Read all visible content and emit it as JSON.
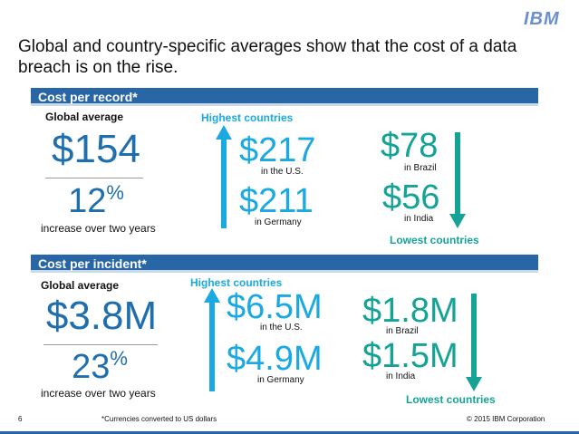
{
  "logo": "IBM",
  "title": "Global and country-specific averages show that the cost of a data breach is on the rise.",
  "sections": [
    {
      "heading": "Cost per record*",
      "global_label": "Global average",
      "global_value": "$154",
      "increase_value": "12",
      "increase_unit": "%",
      "increase_text": "increase over two years",
      "highest_label": "Highest countries",
      "highest": [
        {
          "value": "$217",
          "country": "in the U.S."
        },
        {
          "value": "$211",
          "country": "in Germany"
        }
      ],
      "lowest_label": "Lowest countries",
      "lowest": [
        {
          "value": "$78",
          "country": "in Brazil"
        },
        {
          "value": "$56",
          "country": "in India"
        }
      ]
    },
    {
      "heading": "Cost per incident*",
      "global_label": "Global average",
      "global_value": "$3.8M",
      "increase_value": "23",
      "increase_unit": "%",
      "increase_text": "increase over two years",
      "highest_label": "Highest countries",
      "highest": [
        {
          "value": "$6.5M",
          "country": "in the U.S."
        },
        {
          "value": "$4.9M",
          "country": "in Germany"
        }
      ],
      "lowest_label": "Lowest countries",
      "lowest": [
        {
          "value": "$1.8M",
          "country": "in Brazil"
        },
        {
          "value": "$1.5M",
          "country": "in India"
        }
      ]
    }
  ],
  "footer": {
    "page": "6",
    "note": "*Currencies converted to US dollars",
    "copyright": "© 2015 IBM Corporation"
  }
}
